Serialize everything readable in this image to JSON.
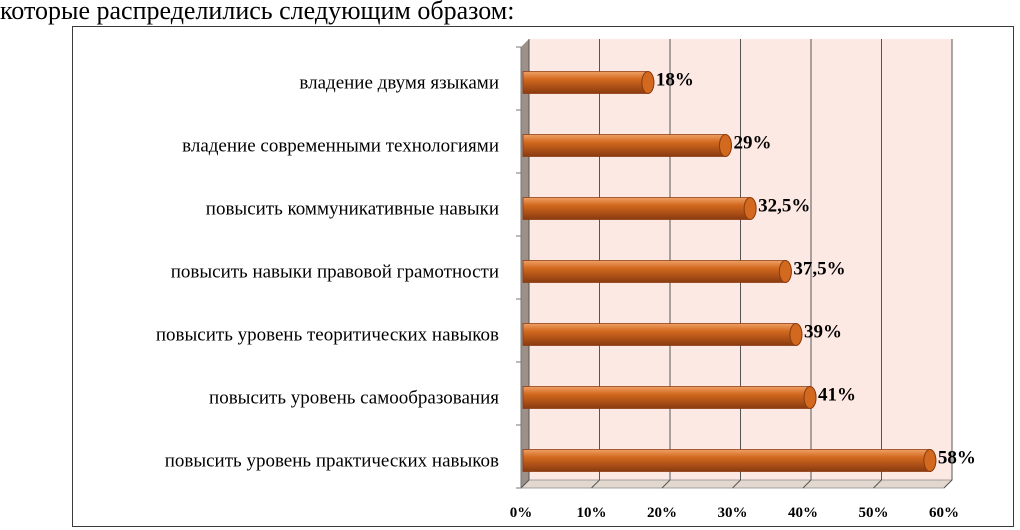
{
  "intro_text": "которые распределились следующим образом:",
  "colors": {
    "bar": "#d2691e",
    "bar_dark": "#8a3a10",
    "bar_light": "#f0a067",
    "plot_bg": "#fde9e4",
    "wall_side": "#9c9088",
    "floor": "#e2d8cf",
    "grid": "#555555"
  },
  "chart_data": {
    "type": "bar",
    "orientation": "horizontal",
    "style": "3d-cylinder",
    "title": "",
    "xlabel": "",
    "ylabel": "",
    "categories": [
      "владение двумя языками",
      "владение современными технологиями",
      "повысить коммуникативные навыки",
      "повысить навыки правовой грамотности",
      "повысить уровень теоритических навыков",
      "повысить уровень самообразования",
      "повысить уровень практических навыков"
    ],
    "values": [
      18,
      29,
      32.5,
      37.5,
      39,
      41,
      58
    ],
    "data_labels": [
      "18%",
      "29%",
      "32,5%",
      "37,5%",
      "39%",
      "41%",
      "58%"
    ],
    "xlim": [
      0,
      60
    ],
    "xticks": [
      0,
      10,
      20,
      30,
      40,
      50,
      60
    ],
    "xtick_labels": [
      "0%",
      "10%",
      "20%",
      "30%",
      "40%",
      "50%",
      "60%"
    ],
    "grid": true,
    "legend": "none"
  }
}
